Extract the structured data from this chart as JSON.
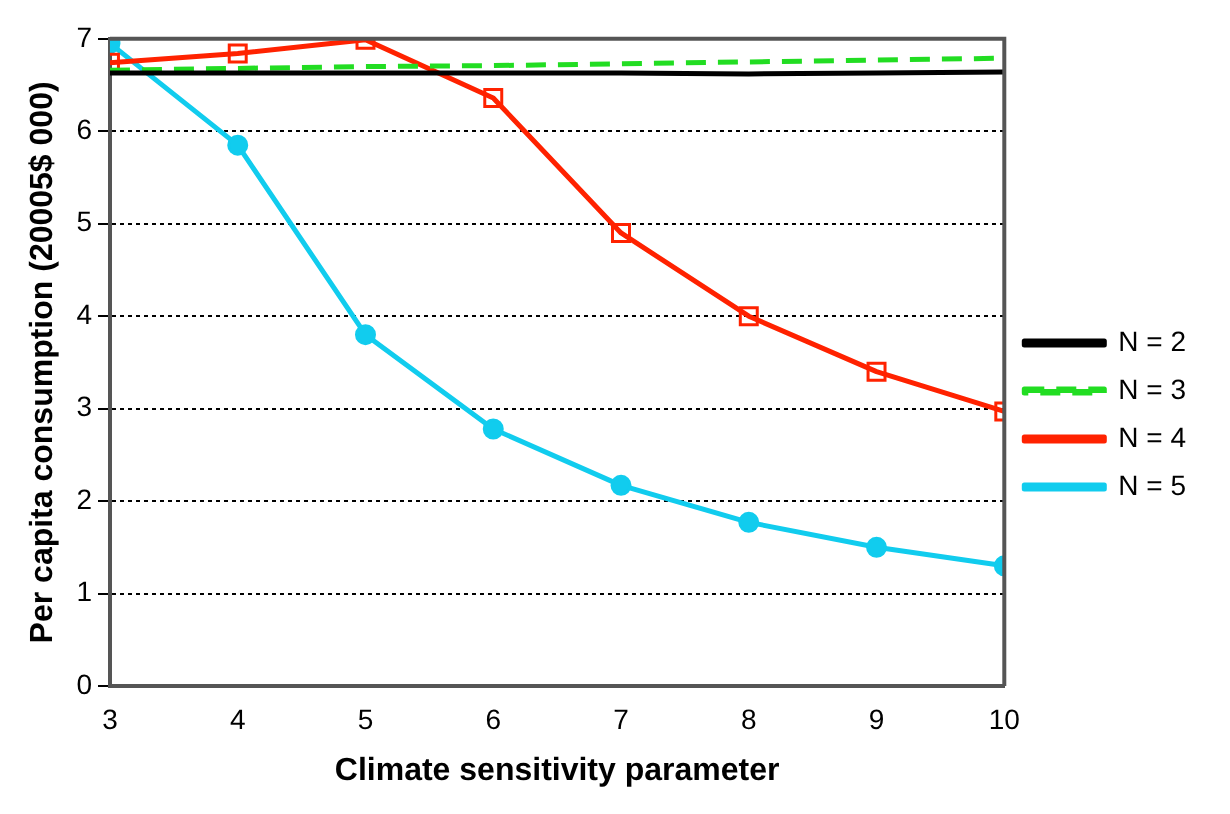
{
  "chart_data": {
    "type": "line",
    "xlabel": "Climate sensitivity parameter",
    "ylabel": "Per capita consumption (20005$ 000)",
    "x": [
      3,
      4,
      5,
      6,
      7,
      8,
      9,
      10
    ],
    "xlim": [
      3,
      10
    ],
    "xticks": [
      3,
      4,
      5,
      6,
      7,
      8,
      9,
      10
    ],
    "ylim": [
      0,
      7
    ],
    "yticks": [
      0,
      1,
      2,
      3,
      4,
      5,
      6,
      7
    ],
    "grid": "y",
    "legend": "right",
    "series": [
      {
        "name": "N = 2",
        "color": "#000000",
        "values": [
          6.63,
          6.63,
          6.63,
          6.63,
          6.63,
          6.62,
          6.63,
          6.64
        ],
        "marker": "none",
        "line_style": "solid"
      },
      {
        "name": "N = 3",
        "color": "#22dd22",
        "values": [
          6.66,
          6.68,
          6.7,
          6.71,
          6.73,
          6.75,
          6.77,
          6.79
        ],
        "marker": "none",
        "line_style": "dashed"
      },
      {
        "name": "N = 4",
        "color": "#ff2200",
        "values": [
          6.74,
          6.84,
          6.99,
          6.36,
          4.9,
          4.0,
          3.4,
          2.97
        ],
        "marker": "square",
        "line_style": "solid"
      },
      {
        "name": "N = 5",
        "color": "#11ccee",
        "values": [
          6.95,
          5.85,
          3.8,
          2.78,
          2.17,
          1.77,
          1.5,
          1.3
        ],
        "marker": "circle",
        "line_style": "solid"
      }
    ]
  }
}
